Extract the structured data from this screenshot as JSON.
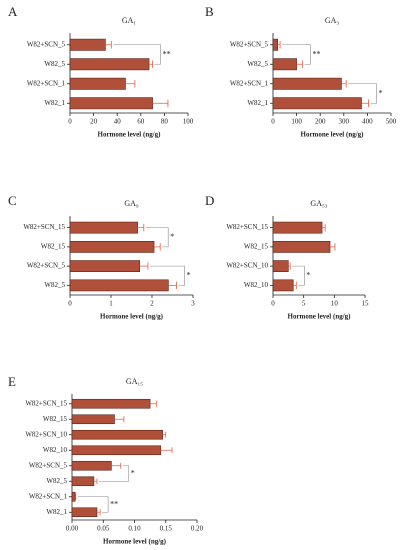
{
  "chart_data": [
    {
      "type": "bar",
      "panel": "A",
      "title": "GA₁",
      "x_label": "Hormone level (ng/g)",
      "categories": [
        "W82+SCN_5",
        "W82_5",
        "W82+SCN_1",
        "W82_1"
      ],
      "values": [
        30,
        67,
        47,
        70
      ],
      "errors": [
        5,
        3,
        8,
        13
      ],
      "color": "#b0503a",
      "error_color": "#e0604a",
      "xlim": [
        0,
        100
      ],
      "xticks": [
        0,
        20,
        40,
        60,
        80,
        100
      ],
      "significance": [
        {
          "label": "**",
          "rows": [
            0,
            1
          ]
        }
      ]
    },
    {
      "type": "bar",
      "panel": "B",
      "title": "GA₃",
      "x_label": "Hormone level (ng/g)",
      "categories": [
        "W82+SCN_5",
        "W82_5",
        "W82+SCN_1",
        "W82_1"
      ],
      "values": [
        20,
        100,
        290,
        375
      ],
      "errors": [
        10,
        25,
        20,
        30
      ],
      "color": "#b0503a",
      "error_color": "#e0604a",
      "xlim": [
        0,
        500
      ],
      "xticks": [
        0,
        100,
        200,
        300,
        400,
        500
      ],
      "significance": [
        {
          "label": "**",
          "rows": [
            0,
            1
          ]
        },
        {
          "label": "*",
          "rows": [
            2,
            3
          ]
        }
      ]
    },
    {
      "type": "bar",
      "panel": "C",
      "title": "GA₉",
      "x_label": "Hormone level (ng/g)",
      "categories": [
        "W82+SCN_15",
        "W82_15",
        "W82+SCN_5",
        "W82_5"
      ],
      "values": [
        1.65,
        2.05,
        1.7,
        2.4
      ],
      "errors": [
        0.15,
        0.15,
        0.2,
        0.2
      ],
      "color": "#b0503a",
      "error_color": "#e0604a",
      "xlim": [
        0,
        3
      ],
      "xticks": [
        0,
        1,
        2,
        3
      ],
      "significance": [
        {
          "label": "*",
          "rows": [
            0,
            1
          ]
        },
        {
          "label": "*",
          "rows": [
            2,
            3
          ]
        }
      ]
    },
    {
      "type": "bar",
      "panel": "D",
      "title": "GA₅₃",
      "x_label": "Hormone level (ng/g)",
      "categories": [
        "W82+SCN_15",
        "W82_15",
        "W82+SCN_10",
        "W82_10"
      ],
      "values": [
        8,
        9.3,
        2.5,
        3.3
      ],
      "errors": [
        0.5,
        0.8,
        0.3,
        0.5
      ],
      "color": "#b0503a",
      "error_color": "#e0604a",
      "xlim": [
        0,
        15
      ],
      "xticks": [
        0,
        5,
        10,
        15
      ],
      "significance": [
        {
          "label": "*",
          "rows": [
            2,
            3
          ]
        }
      ]
    },
    {
      "type": "bar",
      "panel": "E",
      "title": "GA₁₅",
      "x_label": "Hormone level (ng/g)",
      "categories": [
        "W82+SCN_15",
        "W82_15",
        "W82+SCN_10",
        "W82_10",
        "W82+SCN_5",
        "W82_5",
        "W82+SCN_1",
        "W82_1"
      ],
      "values": [
        0.125,
        0.068,
        0.145,
        0.142,
        0.063,
        0.035,
        0.005,
        0.04
      ],
      "errors": [
        0.01,
        0.015,
        0.005,
        0.018,
        0.015,
        0.005,
        0.001,
        0.005
      ],
      "color": "#b0503a",
      "error_color": "#e0604a",
      "xlim": [
        0,
        0.2
      ],
      "xticks": [
        {
          "value": 0,
          "label": "0.00"
        },
        {
          "value": 0.05,
          "label": "0.05"
        },
        {
          "value": 0.1,
          "label": "0.10"
        },
        {
          "value": 0.15,
          "label": "0.15"
        },
        {
          "value": 0.2,
          "label": "0.20"
        }
      ],
      "significance": [
        {
          "label": "*",
          "rows": [
            4,
            5
          ]
        },
        {
          "label": "**",
          "rows": [
            6,
            7
          ]
        }
      ]
    }
  ]
}
